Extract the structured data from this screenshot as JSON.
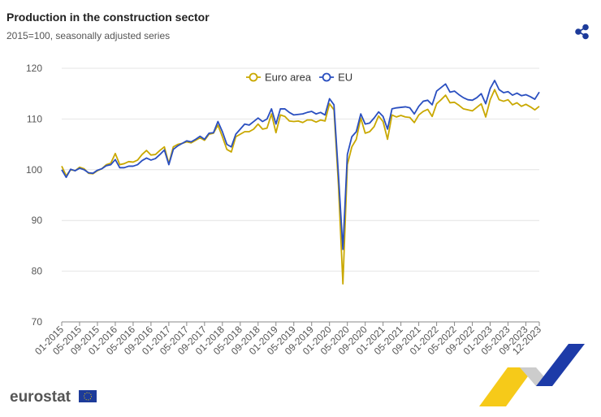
{
  "header": {
    "title": "Production in the construction sector",
    "subtitle": "2015=100, seasonally adjusted series"
  },
  "footer": {
    "logo": "eurostat"
  },
  "chart_data": {
    "type": "line",
    "categories": [
      "01-2015",
      null,
      null,
      null,
      "05-2015",
      null,
      null,
      null,
      "09-2015",
      null,
      null,
      null,
      "01-2016",
      null,
      null,
      null,
      "05-2016",
      null,
      null,
      null,
      "09-2016",
      null,
      null,
      null,
      "01-2017",
      null,
      null,
      null,
      "05-2017",
      null,
      null,
      null,
      "09-2017",
      null,
      null,
      null,
      "01-2018",
      null,
      null,
      null,
      "05-2018",
      null,
      null,
      null,
      "09-2018",
      null,
      null,
      null,
      "01-2019",
      null,
      null,
      null,
      "05-2019",
      null,
      null,
      null,
      "09-2019",
      null,
      null,
      null,
      "01-2020",
      null,
      null,
      null,
      "05-2020",
      null,
      null,
      null,
      "09-2020",
      null,
      null,
      null,
      "01-2021",
      null,
      null,
      null,
      "05-2021",
      null,
      null,
      null,
      "09-2021",
      null,
      null,
      null,
      "01-2022",
      null,
      null,
      null,
      "05-2022",
      null,
      null,
      null,
      "09-2022",
      null,
      null,
      null,
      "01-2023",
      null,
      null,
      null,
      "05-2023",
      null,
      null,
      null,
      "09-2023",
      null,
      null,
      "12-2023"
    ],
    "series": [
      {
        "name": "Euro area",
        "color": "#c9a800",
        "values": [
          100.7,
          98.8,
          100.0,
          99.8,
          100.5,
          100.2,
          99.3,
          99.2,
          99.8,
          100.2,
          101.0,
          101.3,
          103.2,
          101.0,
          101.2,
          101.6,
          101.5,
          101.9,
          103.0,
          103.8,
          102.9,
          103.0,
          103.8,
          104.5,
          101.2,
          104.5,
          105.0,
          105.2,
          105.5,
          105.3,
          105.8,
          106.3,
          105.8,
          107.0,
          107.2,
          108.8,
          106.5,
          104.0,
          103.5,
          106.5,
          107.0,
          107.5,
          107.5,
          108.0,
          109.0,
          108.0,
          108.2,
          111.0,
          107.3,
          110.8,
          110.5,
          109.6,
          109.5,
          109.6,
          109.3,
          109.8,
          109.8,
          109.4,
          109.8,
          109.6,
          113.0,
          111.8,
          97.0,
          77.5,
          101.0,
          104.5,
          106.0,
          110.2,
          107.2,
          107.5,
          108.5,
          110.6,
          109.5,
          106.0,
          110.8,
          110.4,
          110.7,
          110.4,
          110.3,
          109.3,
          110.8,
          111.5,
          111.9,
          110.5,
          113.0,
          113.8,
          114.7,
          113.2,
          113.3,
          112.7,
          112.0,
          111.8,
          111.6,
          112.3,
          113.0,
          110.4,
          113.8,
          115.8,
          113.8,
          113.5,
          113.8,
          112.8,
          113.2,
          112.5,
          112.9,
          112.4,
          111.8,
          112.5
        ]
      },
      {
        "name": "EU",
        "color": "#2a4fc0",
        "values": [
          100.0,
          98.5,
          100.1,
          99.8,
          100.3,
          100.0,
          99.4,
          99.3,
          99.9,
          100.2,
          100.8,
          101.0,
          102.0,
          100.4,
          100.4,
          100.7,
          100.7,
          101.0,
          101.8,
          102.3,
          101.9,
          102.2,
          103.0,
          103.9,
          101.0,
          104.0,
          104.7,
          105.2,
          105.7,
          105.5,
          106.0,
          106.6,
          106.0,
          107.2,
          107.3,
          109.5,
          107.5,
          105.0,
          104.5,
          107.0,
          108.0,
          109.0,
          108.8,
          109.5,
          110.2,
          109.5,
          110.0,
          112.0,
          109.0,
          112.0,
          112.0,
          111.3,
          110.8,
          110.9,
          111.0,
          111.3,
          111.5,
          111.0,
          111.3,
          110.8,
          114.0,
          112.8,
          99.0,
          84.3,
          103.0,
          106.5,
          107.5,
          111.0,
          109.0,
          109.2,
          110.2,
          111.4,
          110.5,
          108.0,
          112.0,
          112.2,
          112.3,
          112.4,
          112.2,
          111.0,
          112.5,
          113.5,
          113.7,
          112.8,
          115.5,
          116.2,
          116.9,
          115.3,
          115.5,
          114.8,
          114.2,
          113.8,
          113.7,
          114.2,
          115.0,
          113.0,
          116.0,
          117.6,
          115.8,
          115.2,
          115.4,
          114.7,
          115.1,
          114.6,
          114.8,
          114.4,
          113.9,
          115.3
        ]
      }
    ],
    "ylim": [
      70,
      120
    ],
    "yticks": [
      70,
      80,
      90,
      100,
      110,
      120
    ],
    "grid": true,
    "legend": "top"
  }
}
